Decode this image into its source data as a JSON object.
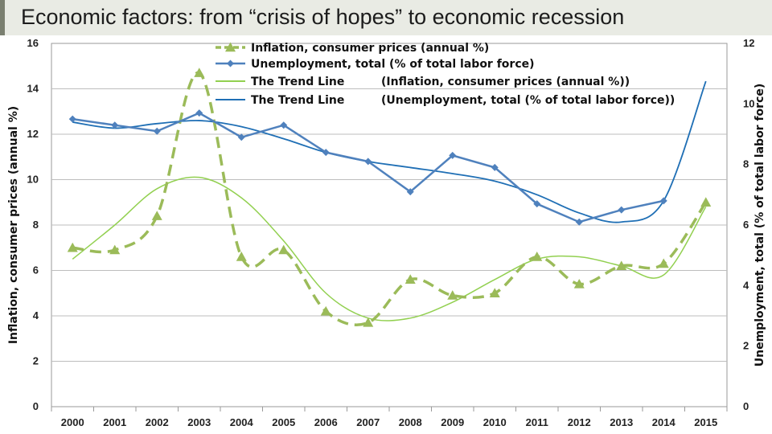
{
  "slide": {
    "title": "Economic factors: from “crisis of hopes” to economic recession"
  },
  "chart_data": {
    "type": "line",
    "x": [
      "2000",
      "2001",
      "2002",
      "2003",
      "2004",
      "2005",
      "2006",
      "2007",
      "2008",
      "2009",
      "2010",
      "2011",
      "2012",
      "2013",
      "2014",
      "2015"
    ],
    "y_left": {
      "label": "Inflation, consumer prices (annual %)",
      "min": 0,
      "max": 16,
      "ticks": [
        0,
        2,
        4,
        6,
        8,
        10,
        12,
        14,
        16
      ]
    },
    "y_right": {
      "label": "Unemployment, total (% of total labor force)",
      "min": 0,
      "max": 12,
      "ticks": [
        0,
        2,
        4,
        6,
        8,
        10,
        12
      ]
    },
    "grid": true,
    "legend_position": "top-center",
    "series": [
      {
        "name": "Inflation, consumer prices (annual %)",
        "axis": "left",
        "style": "dashed-triangle",
        "color": "#9bbb59",
        "values": [
          7.0,
          6.9,
          8.4,
          14.7,
          6.6,
          6.9,
          4.2,
          3.7,
          5.6,
          4.9,
          5.0,
          6.6,
          5.4,
          6.2,
          6.3,
          9.0
        ]
      },
      {
        "name": "Unemployment, total (% of total labor force)",
        "axis": "right",
        "style": "solid-diamond",
        "color": "#4f81bd",
        "values": [
          9.5,
          9.3,
          9.1,
          9.7,
          8.9,
          9.3,
          8.4,
          8.1,
          7.1,
          8.3,
          7.9,
          6.7,
          6.1,
          6.5,
          6.8,
          null
        ]
      },
      {
        "name": "The Trend Line",
        "qualifier": "(Inflation, consumer prices (annual %))",
        "axis": "left",
        "style": "thin",
        "color": "#92d050",
        "values": [
          6.5,
          8.0,
          9.6,
          10.1,
          9.2,
          7.3,
          5.0,
          3.9,
          3.9,
          4.6,
          5.6,
          6.5,
          6.6,
          6.2,
          5.8,
          8.8
        ]
      },
      {
        "name": "The Trend Line",
        "qualifier": "(Unemployment, total (% of total labor force))",
        "axis": "right",
        "style": "thin",
        "color": "#1f6fb5",
        "values": [
          9.4,
          9.2,
          9.35,
          9.45,
          9.25,
          8.85,
          8.4,
          8.1,
          7.9,
          7.7,
          7.45,
          7.0,
          6.4,
          6.1,
          6.8,
          10.75
        ]
      }
    ]
  }
}
